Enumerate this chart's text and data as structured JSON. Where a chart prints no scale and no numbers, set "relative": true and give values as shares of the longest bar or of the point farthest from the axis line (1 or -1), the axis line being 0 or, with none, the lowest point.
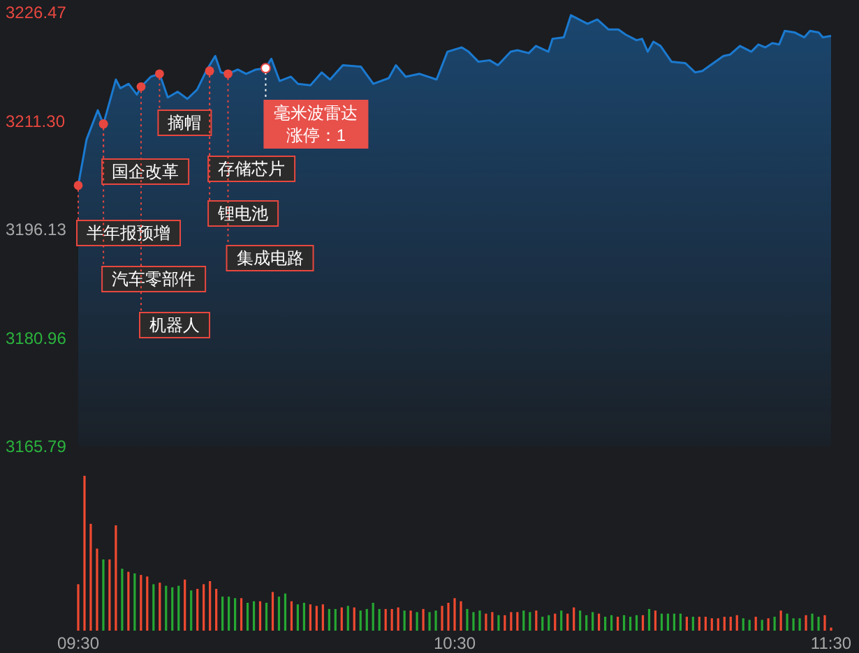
{
  "chart_data": [
    {
      "type": "area",
      "color": "#1b7ad0",
      "xlim": [
        9.5,
        11.5
      ],
      "ylim": [
        3165.79,
        3226.47
      ],
      "tick_labels": "y",
      "yticks": [
        3226.47,
        {
          "value": 3211.3,
          "label": "3211.30"
        },
        3196.13,
        3180.96,
        3165.79
      ],
      "x": [
        9.5,
        9.522,
        9.552,
        9.567,
        9.6,
        9.612,
        9.634,
        9.656,
        9.667,
        9.693,
        9.716,
        9.738,
        9.764,
        9.79,
        9.816,
        9.842,
        9.864,
        9.879,
        9.898,
        9.924,
        9.946,
        9.972,
        9.998,
        10.013,
        10.035,
        10.065,
        10.084,
        10.117,
        10.147,
        10.169,
        10.203,
        10.251,
        10.284,
        10.325,
        10.344,
        10.37,
        10.407,
        10.452,
        10.481,
        10.519,
        10.537,
        10.563,
        10.593,
        10.615,
        10.649,
        10.667,
        10.697,
        10.716,
        10.749,
        10.76,
        10.79,
        10.809,
        10.853,
        10.879,
        10.909,
        10.935,
        10.954,
        10.983,
        10.998,
        11.013,
        11.028,
        11.047,
        11.076,
        11.113,
        11.139,
        11.158,
        11.214,
        11.232,
        11.258,
        11.288,
        11.307,
        11.325,
        11.344,
        11.362,
        11.377,
        11.403,
        11.429,
        11.444,
        11.467,
        11.478,
        11.5
      ],
      "values": [
        3202.3,
        3208.7,
        3212.8,
        3210.9,
        3217.1,
        3215.9,
        3216.5,
        3215.0,
        3216.1,
        3217.5,
        3217.9,
        3214.6,
        3215.4,
        3214.4,
        3215.7,
        3218.5,
        3220.4,
        3218.1,
        3217.9,
        3218.5,
        3217.9,
        3218.5,
        3218.7,
        3220.0,
        3216.9,
        3217.5,
        3216.5,
        3216.3,
        3218.1,
        3217.1,
        3219.1,
        3218.9,
        3216.5,
        3217.3,
        3219.1,
        3217.5,
        3217.9,
        3217.1,
        3221.0,
        3221.6,
        3221.0,
        3219.6,
        3219.8,
        3219.1,
        3221.0,
        3221.2,
        3220.8,
        3221.8,
        3221.0,
        3222.8,
        3223.0,
        3226.1,
        3224.9,
        3225.5,
        3224.1,
        3224.1,
        3223.4,
        3222.6,
        3222.8,
        3221.0,
        3222.4,
        3221.8,
        3219.6,
        3219.4,
        3218.1,
        3218.3,
        3220.4,
        3220.6,
        3221.8,
        3221.0,
        3222.0,
        3221.6,
        3222.2,
        3222.0,
        3223.9,
        3223.7,
        3223.0,
        3223.9,
        3223.7,
        3223.0,
        3223.2
      ],
      "annotations": [
        {
          "text": "半年报预增",
          "x": 9.5,
          "y": 3202.3
        },
        {
          "text": "国企改革",
          "x": 9.567,
          "y": 3210.9
        },
        {
          "text": "汽车零部件",
          "x": 9.567,
          "y": 3210.9
        },
        {
          "text": "机器人",
          "x": 9.667,
          "y": 3216.1
        },
        {
          "text": "摘帽",
          "x": 9.716,
          "y": 3217.9
        },
        {
          "text": "存储芯片",
          "x": 9.849,
          "y": 3218.3
        },
        {
          "text": "锂电池",
          "x": 9.849,
          "y": 3218.3
        },
        {
          "text": "集成电路",
          "x": 9.898,
          "y": 3217.9
        },
        {
          "text": "毫米波雷达",
          "x": 9.998,
          "y": 3218.7
        },
        "涨停：1"
      ]
    },
    {
      "type": "bar",
      "relative": true,
      "xlim": [
        9.5,
        11.5
      ],
      "tick_labels": "x",
      "xticks": [
        {
          "value": 9.5,
          "label": "09:30"
        },
        {
          "value": 10.5,
          "label": "10:30"
        },
        {
          "value": 11.5,
          "label": "11:30"
        }
      ],
      "x": [
        9.5,
        9.5167,
        9.5333,
        9.55,
        9.5667,
        9.5833,
        9.6,
        9.6167,
        9.6333,
        9.65,
        9.6667,
        9.6833,
        9.7,
        9.7167,
        9.7333,
        9.75,
        9.7667,
        9.7833,
        9.8,
        9.8167,
        9.8333,
        9.85,
        9.8667,
        9.8833,
        9.9,
        9.9167,
        9.9333,
        9.95,
        9.9667,
        9.9833,
        10,
        10.0167,
        10.0333,
        10.05,
        10.0667,
        10.0833,
        10.1,
        10.1167,
        10.1333,
        10.15,
        10.1667,
        10.1833,
        10.2,
        10.2167,
        10.2333,
        10.25,
        10.2667,
        10.2833,
        10.3,
        10.3167,
        10.3333,
        10.35,
        10.3667,
        10.3833,
        10.4,
        10.4167,
        10.4333,
        10.45,
        10.4667,
        10.4833,
        10.5,
        10.5167,
        10.5333,
        10.55,
        10.5667,
        10.5833,
        10.6,
        10.6167,
        10.6333,
        10.65,
        10.6667,
        10.6833,
        10.7,
        10.7167,
        10.7333,
        10.75,
        10.7667,
        10.7833,
        10.8,
        10.8167,
        10.8333,
        10.85,
        10.8667,
        10.8833,
        10.9,
        10.9167,
        10.9333,
        10.95,
        10.9667,
        10.9833,
        11,
        11.0167,
        11.0333,
        11.05,
        11.0667,
        11.0833,
        11.1,
        11.1167,
        11.1333,
        11.15,
        11.1667,
        11.1833,
        11.2,
        11.2167,
        11.2333,
        11.25,
        11.2667,
        11.2833,
        11.3,
        11.3167,
        11.3333,
        11.35,
        11.3667,
        11.3833,
        11.4,
        11.4167,
        11.4333,
        11.45,
        11.4667,
        11.4833,
        11.5
      ],
      "values": [
        0.3,
        1,
        0.69,
        0.53,
        0.46,
        0.46,
        0.68,
        0.4,
        0.38,
        0.37,
        0.36,
        0.35,
        0.3,
        0.31,
        0.29,
        0.28,
        0.29,
        0.33,
        0.26,
        0.27,
        0.3,
        0.32,
        0.27,
        0.22,
        0.22,
        0.21,
        0.21,
        0.18,
        0.19,
        0.19,
        0.18,
        0.25,
        0.22,
        0.24,
        0.19,
        0.17,
        0.18,
        0.17,
        0.16,
        0.17,
        0.14,
        0.14,
        0.15,
        0.16,
        0.15,
        0.13,
        0.14,
        0.18,
        0.14,
        0.14,
        0.14,
        0.15,
        0.13,
        0.13,
        0.12,
        0.14,
        0.12,
        0.13,
        0.16,
        0.18,
        0.21,
        0.19,
        0.14,
        0.12,
        0.13,
        0.11,
        0.12,
        0.1,
        0.1,
        0.12,
        0.12,
        0.13,
        0.12,
        0.13,
        0.09,
        0.1,
        0.11,
        0.13,
        0.11,
        0.15,
        0.13,
        0.1,
        0.12,
        0.11,
        0.09,
        0.1,
        0.09,
        0.1,
        0.09,
        0.1,
        0.1,
        0.14,
        0.13,
        0.11,
        0.11,
        0.11,
        0.11,
        0.09,
        0.09,
        0.09,
        0.09,
        0.08,
        0.08,
        0.09,
        0.09,
        0.1,
        0.08,
        0.07,
        0.09,
        0.07,
        0.08,
        0.09,
        0.13,
        0.11,
        0.08,
        0.08,
        0.1,
        0.11,
        0.09,
        0.1,
        0.02
      ],
      "colors": [
        "#f04a30",
        "#f04a30",
        "#f04a30",
        "#f04a30",
        "#26a832",
        "#f04a30",
        "#f04a30",
        "#26a832",
        "#f04a30",
        "#26a832",
        "#f04a30",
        "#f04a30",
        "#26a832",
        "#f04a30",
        "#26a832",
        "#26a832",
        "#26a832",
        "#f04a30",
        "#26a832",
        "#f04a30",
        "#f04a30",
        "#f04a30",
        "#f04a30",
        "#26a832",
        "#26a832",
        "#26a832",
        "#f04a30",
        "#26a832",
        "#26a832",
        "#f04a30",
        "#26a832",
        "#f04a30",
        "#26a832",
        "#26a832",
        "#f04a30",
        "#26a832",
        "#26a832",
        "#f04a30",
        "#f04a30",
        "#f04a30",
        "#26a832",
        "#26a832",
        "#f04a30",
        "#26a832",
        "#f04a30",
        "#26a832",
        "#26a832",
        "#26a832",
        "#26a832",
        "#f04a30",
        "#f04a30",
        "#f04a30",
        "#26a832",
        "#f04a30",
        "#26a832",
        "#f04a30",
        "#26a832",
        "#26a832",
        "#f04a30",
        "#f04a30",
        "#f04a30",
        "#f04a30",
        "#26a832",
        "#26a832",
        "#26a832",
        "#f04a30",
        "#f04a30",
        "#26a832",
        "#f04a30",
        "#f04a30",
        "#f04a30",
        "#26a832",
        "#26a832",
        "#f04a30",
        "#26a832",
        "#26a832",
        "#f04a30",
        "#26a832",
        "#f04a30",
        "#f04a30",
        "#26a832",
        "#26a832",
        "#26a832",
        "#f04a30",
        "#26a832",
        "#26a832",
        "#f04a30",
        "#26a832",
        "#26a832",
        "#26a832",
        "#f04a30",
        "#26a832",
        "#f04a30",
        "#26a832",
        "#26a832",
        "#26a832",
        "#26a832",
        "#f04a30",
        "#26a832",
        "#f04a30",
        "#f04a30",
        "#f04a30",
        "#f04a30",
        "#f04a30",
        "#f04a30",
        "#f04a30",
        "#26a832",
        "#26a832",
        "#f04a30",
        "#26a832",
        "#f04a30",
        "#26a832",
        "#f04a30",
        "#26a832",
        "#26a832",
        "#26a832",
        "#f04a30",
        "#26a832",
        "#26a832",
        "#f04a30",
        "#f04a30"
      ]
    }
  ]
}
